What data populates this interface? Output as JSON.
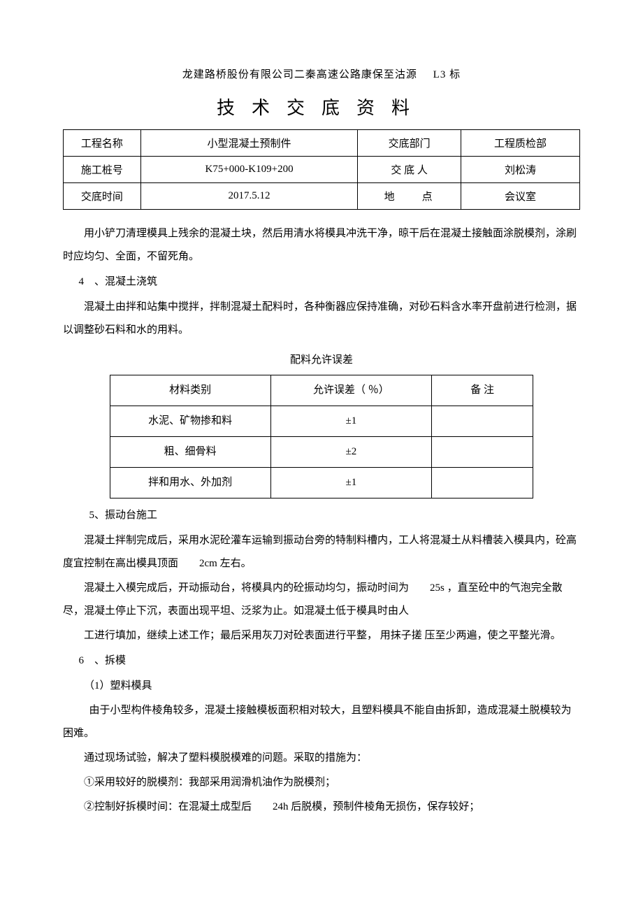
{
  "header": {
    "company_line": "龙建路桥股份有限公司二秦高速公路康保至沽源",
    "label_code": "L3 标",
    "doc_title": "技术交底资料"
  },
  "info_table": {
    "r1c1": "工程名称",
    "r1c2": "小型混凝土预制件",
    "r1c3": "交底部门",
    "r1c4": "工程质检部",
    "r2c1": "施工桩号",
    "r2c2": "K75+000-K109+200",
    "r2c3": "交 底 人",
    "r2c4": "刘松涛",
    "r3c1": "交底时间",
    "r3c2": "2017.5.12",
    "r3c3": "地　　点",
    "r3c4": "会议室"
  },
  "body": {
    "p1": "用小铲刀清理模具上残余的混凝土块，然后用清水将模具冲洗干净，晾干后在混凝土接触面涂脱模剂，涂刷时应均匀、全面，不留死角。",
    "s4": "4　、混凝土浇筑",
    "p2": "混凝土由拌和站集中搅拌，拌制混凝土配料时，各种衡器应保持准确，对砂石料含水率开盘前进行检测，据以调整砂石料和水的用料。",
    "tol_caption": "配料允许误差",
    "t_h1": "材料类别",
    "t_h2": "允许误差（ ％）",
    "t_h3": "备 注",
    "t_r1c1": "水泥、矿物掺和料",
    "t_r1c2": "±1",
    "t_r1c3": "",
    "t_r2c1": "粗、细骨料",
    "t_r2c2": "±2",
    "t_r2c3": "",
    "t_r3c1": "拌和用水、外加剂",
    "t_r3c2": "±1",
    "t_r3c3": "",
    "s5": "5、振动台施工",
    "p3": "混凝土拌制完成后，采用水泥砼灌车运输到振动台旁的特制料槽内，工人将混凝土从料槽装入模具内，砼高度宜控制在高出模具顶面　　2cm 左右。",
    "p4": "混凝土入模完成后，开动振动台，将模具内的砼振动均匀，振动时间为　　25s ，直至砼中的气泡完全散尽，混凝土停止下沉，表面出现平坦、泛浆为止。如混凝土低于模具时由人",
    "p5": "工进行填加，继续上述工作；最后采用灰刀对砼表面进行平整， 用抹子搓 压至少两遍，使之平整光滑。",
    "s6": "6　、拆模",
    "p6": "（1）塑料模具",
    "p7": "由于小型构件棱角较多，混凝土接触模板面积相对较大，且塑料模具不能自由拆卸，造成混凝土脱模较为困难。",
    "p8": "通过现场试验，解决了塑料模脱模难的问题。采取的措施为：",
    "p9": "①采用较好的脱模剂：我部采用润滑机油作为脱模剂；",
    "p10": "②控制好拆模时间：在混凝土成型后　　24h 后脱模，预制件棱角无损伤，保存较好；"
  },
  "colors": {
    "text": "#000000",
    "background": "#ffffff",
    "border": "#000000"
  },
  "typography": {
    "body_fontsize": 15,
    "title_fontsize": 26,
    "font_family": "SimSun"
  }
}
